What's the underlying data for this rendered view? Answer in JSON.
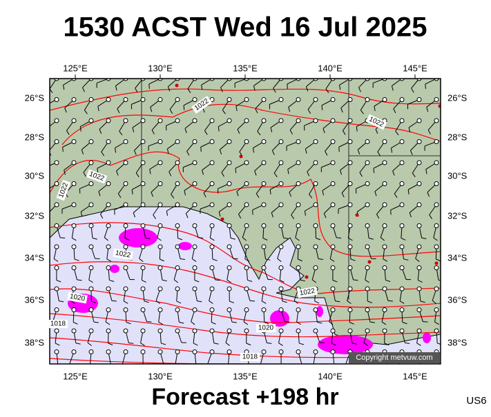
{
  "header": {
    "title": "1530 ACST Wed 16 Jul 2025"
  },
  "footer": {
    "forecast": "Forecast +198 hr",
    "code": "US6"
  },
  "map": {
    "lon_labels": [
      "125°E",
      "130°E",
      "135°E",
      "140°E",
      "145°E"
    ],
    "lat_labels": [
      "26°S",
      "28°S",
      "30°S",
      "32°S",
      "34°S",
      "36°S",
      "38°S"
    ],
    "isobar_labels": [
      "1022",
      "1022",
      "1022",
      "1022",
      "1022",
      "1022",
      "1020",
      "1018",
      "1020",
      "1018"
    ],
    "copyright": "Copyright metvuw.com"
  }
}
